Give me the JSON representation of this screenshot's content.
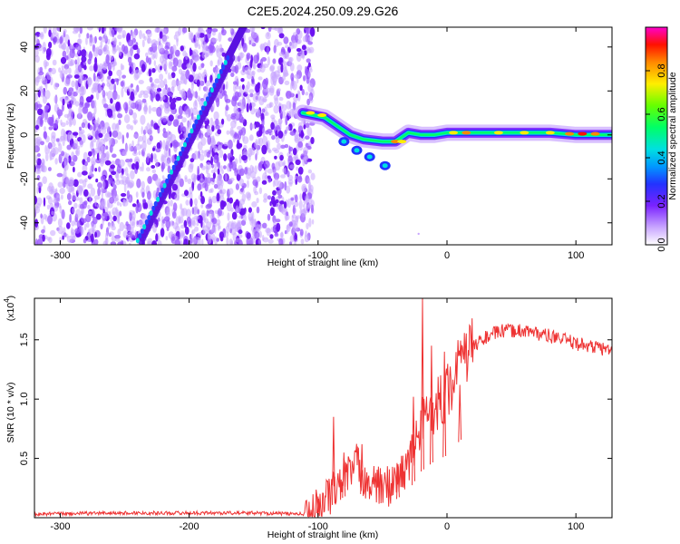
{
  "figure": {
    "title": "C2E5.2024.250.09.29.G26"
  },
  "chart_data": [
    {
      "type": "heatmap",
      "xlabel": "Height of straight line (km)",
      "ylabel": "Frequency (Hz)",
      "xlim": [
        -320,
        128
      ],
      "ylim": [
        -50,
        49
      ],
      "xticks": [
        "-300",
        "-200",
        "-100",
        "0",
        "100"
      ],
      "yticks": [
        "-40",
        "-20",
        "0",
        "20",
        "40"
      ],
      "colorbar": {
        "label": "Normalized spectral amplitude",
        "range": [
          0,
          1
        ],
        "ticks": [
          "0.0",
          "0.2",
          "0.4",
          "0.6",
          "0.8"
        ],
        "colormap": "rainbow"
      },
      "noise_region_x": [
        -320,
        -112
      ],
      "features": [
        {
          "name": "diagonal trace",
          "x_start": -240,
          "y_start": -48,
          "x_end": -170,
          "y_end": 35,
          "peak_amplitude": 0.3
        },
        {
          "name": "main signal",
          "points": [
            [
              -112,
              10
            ],
            [
              -95,
              8
            ],
            [
              -85,
              4
            ],
            [
              -75,
              0
            ],
            [
              -65,
              -2
            ],
            [
              -50,
              -3
            ],
            [
              -40,
              -3
            ],
            [
              -30,
              1
            ],
            [
              -20,
              0
            ],
            [
              -10,
              0
            ],
            [
              0,
              1
            ],
            [
              20,
              1
            ],
            [
              40,
              1
            ],
            [
              60,
              1
            ],
            [
              80,
              1
            ],
            [
              100,
              0
            ],
            [
              128,
              0
            ]
          ],
          "peak_amplitude": 1.0
        },
        {
          "name": "secondary branch",
          "points": [
            [
              -80,
              -3
            ],
            [
              -70,
              -7
            ],
            [
              -60,
              -10
            ],
            [
              -48,
              -14
            ]
          ],
          "peak_amplitude": 0.4
        }
      ]
    },
    {
      "type": "line",
      "xlabel": "Height of straight line (km)",
      "ylabel": "SNR (10 * v/v)",
      "multiplier": "(x10",
      "multiplier_exp": "4",
      "xlim": [
        -320,
        128
      ],
      "ylim": [
        0,
        1.85
      ],
      "xticks": [
        "-300",
        "-200",
        "-100",
        "0",
        "100"
      ],
      "yticks": [
        "0.5",
        "1.0",
        "1.5"
      ],
      "color": "#ee3333",
      "series": [
        {
          "x": [
            -320,
            -260,
            -200,
            -150,
            -110,
            -100,
            -90,
            -80,
            -70,
            -60,
            -50,
            -40,
            -30,
            -20,
            -10,
            0,
            10,
            20,
            30,
            40,
            60,
            80,
            100,
            128
          ],
          "y": [
            0.03,
            0.04,
            0.04,
            0.04,
            0.03,
            0.08,
            0.2,
            0.35,
            0.45,
            0.28,
            0.25,
            0.3,
            0.45,
            0.78,
            0.95,
            1.05,
            1.3,
            1.45,
            1.52,
            1.57,
            1.58,
            1.53,
            1.47,
            1.41
          ]
        }
      ],
      "peaks": [
        [
          -100,
          0.18
        ],
        [
          -88,
          0.85
        ],
        [
          -80,
          0.55
        ],
        [
          -66,
          0.62
        ],
        [
          -38,
          0.45
        ],
        [
          -26,
          1.02
        ],
        [
          -19,
          1.85
        ],
        [
          -12,
          1.45
        ],
        [
          -2,
          1.4
        ],
        [
          10,
          1.12
        ]
      ]
    }
  ]
}
